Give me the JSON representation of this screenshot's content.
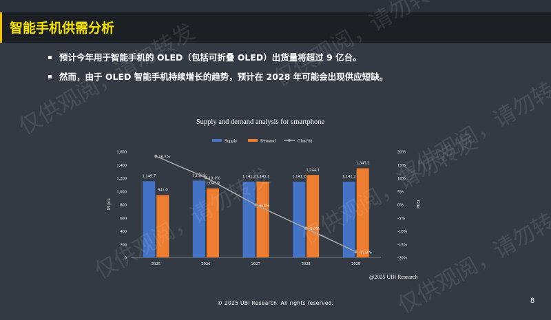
{
  "slide": {
    "title": "智能手机供需分析",
    "bullets": [
      "预计今年用于智能手机的 OLED（包括可折叠 OLED）出货量将超过 9 亿台。",
      "然而，由于 OLED 智能手机持续增长的趋势，预计在 2028 年可能会出现供应短缺。"
    ],
    "source": "@2025 UBI Research",
    "footer": "© 2025 UBI Research. All rights reserved.",
    "page_number": "8",
    "watermark": "仅供观阅，请勿转发"
  },
  "chart_data": {
    "type": "bar",
    "title": "Supply and demand analysis for smartphone",
    "categories": [
      "2025",
      "2026",
      "2027",
      "2028",
      "2029"
    ],
    "series": [
      {
        "name": "Supply",
        "kind": "bar",
        "color": "#4472c4",
        "values": [
          1149.7,
          1158.8,
          1141.2,
          1141.2,
          1141.2
        ],
        "labels": [
          "1,149.7",
          "1,158.8",
          "1,141.2",
          "1,141.2",
          "1,141.2"
        ]
      },
      {
        "name": "Demand",
        "kind": "bar",
        "color": "#ed7d31",
        "values": [
          941.0,
          1042.0,
          1143.1,
          1244.1,
          1345.2
        ],
        "labels": [
          "941.0",
          "1,042.0",
          "1,143.1",
          "1,244.1",
          "1,345.2"
        ]
      },
      {
        "name": "Glut(%)",
        "kind": "line",
        "axis": "right",
        "color": "#a5a5a5",
        "values": [
          18.2,
          10.1,
          -0.2,
          -9.0,
          -17.9
        ],
        "labels": [
          "18.2%",
          "10.1%",
          "-0.2%",
          "-9.0%",
          "-17.9%"
        ]
      }
    ],
    "ylabel": "M pcs",
    "y2label": "Glut",
    "ylim": [
      0,
      1600
    ],
    "y_ticks": [
      "0",
      "200",
      "400",
      "600",
      "800",
      "1,000",
      "1,200",
      "1,400",
      "1,600"
    ],
    "y2lim": [
      -20,
      20
    ],
    "y2_ticks": [
      "-20%",
      "-15%",
      "-10%",
      "-5%",
      "0%",
      "5%",
      "10%",
      "15%",
      "20%"
    ],
    "legend_position": "top",
    "grid": false
  }
}
